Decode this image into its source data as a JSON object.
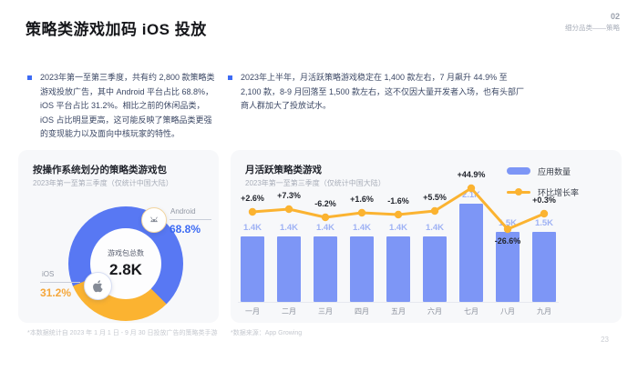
{
  "header": {
    "title": "策略类游戏加码 iOS 投放",
    "corner_number": "02",
    "corner_label": "细分品类——策略"
  },
  "bullets": [
    {
      "text": "2023年第一至第三季度，共有约 2,800 款策略类游戏投放广告，其中 Android 平台占比 68.8%，iOS 平台占比 31.2%。相比之前的休闲品类，iOS 占比明显更高，这可能反映了策略品类更强的变现能力以及面向中核玩家的特性。"
    },
    {
      "text": "2023年上半年，月活跃策略游戏稳定在 1,400 款左右，7 月飙升 44.9% 至 2,100 款，8-9 月回落至 1,500 款左右，这不仅因大量开发者入场，也有头部厂商人群加大了投放试水。"
    }
  ],
  "donut_card": {
    "title": "按操作系统划分的策略类游戏包",
    "subtitle": "2023年第一至第三季度（仅统计中国大陆）",
    "center_label": "游戏包总数",
    "center_value": "2.8K",
    "android_label": "Android",
    "android_value": "68.8%",
    "ios_label": "iOS",
    "ios_value": "31.2%"
  },
  "bar_card": {
    "title": "月活跃策略类游戏",
    "subtitle": "2023年第一至第三季度（仅统计中国大陆）",
    "legend": [
      "应用数量",
      "环比增长率"
    ]
  },
  "footnotes": {
    "left": "*本数据统计自 2023 年 1 月 1 日 - 9 月 30 日投放广告的策略类手游",
    "source": "*数据来源：App Growing"
  },
  "page_number": "23",
  "colors": {
    "accent_blue": "#3D6BF4",
    "bar_blue": "#7D96F6",
    "donut_blue": "#5878F3",
    "accent_yellow": "#FBB331",
    "ios_value_yellow": "#F5A73B",
    "card_background": "#F7F8FA",
    "body_text": "#3C4865"
  },
  "chart_data": [
    {
      "type": "pie",
      "title": "按操作系统划分的策略类游戏包",
      "subtitle": "2023年第一至第三季度（仅统计中国大陆）",
      "center_label": "游戏包总数",
      "center_value": "2.8K",
      "slices": [
        {
          "label": "Android",
          "pct": 68.8,
          "display": "68.8%",
          "color": "#5878F3"
        },
        {
          "label": "iOS",
          "pct": 31.2,
          "display": "31.2%",
          "color": "#FBB331"
        }
      ]
    },
    {
      "type": "bar",
      "title": "月活跃策略类游戏",
      "subtitle": "2023年第一至第三季度（仅统计中国大陆）",
      "categories": [
        "一月",
        "二月",
        "三月",
        "四月",
        "五月",
        "六月",
        "七月",
        "八月",
        "九月"
      ],
      "series": [
        {
          "name": "应用数量",
          "values": [
            1400,
            1400,
            1400,
            1400,
            1400,
            1400,
            2100,
            1500,
            1500
          ],
          "labels": [
            "1.4K",
            "1.4K",
            "1.4K",
            "1.4K",
            "1.4K",
            "1.4K",
            "2.1K",
            "1.5K",
            "1.5K"
          ]
        },
        {
          "name": "环比增长率",
          "values": [
            2.6,
            7.3,
            -6.2,
            1.6,
            -1.6,
            5.5,
            44.9,
            -26.6,
            0.3
          ],
          "labels": [
            "+2.6%",
            "+7.3%",
            "-6.2%",
            "+1.6%",
            "-1.6%",
            "+5.5%",
            "+44.9%",
            "-26.6%",
            "+0.3%"
          ]
        }
      ],
      "legend_position": "top-right",
      "ymax": 2100,
      "grid": false
    }
  ]
}
